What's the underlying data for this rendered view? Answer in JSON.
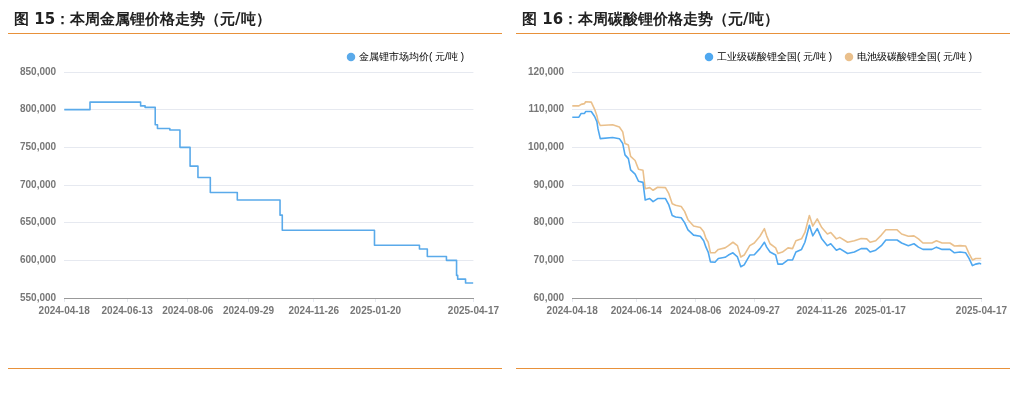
{
  "chart_data": [
    {
      "type": "step",
      "title": "图 15：本周金属锂价格走势（元/吨）",
      "x": [
        "2024-04-18",
        "2024-05-11",
        "2024-06-25",
        "2024-06-29",
        "2024-07-08",
        "2024-07-10",
        "2024-07-21",
        "2024-07-30",
        "2024-08-08",
        "2024-08-15",
        "2024-08-26",
        "2024-09-19",
        "2024-10-27",
        "2024-10-29",
        "2025-01-19",
        "2025-02-28",
        "2025-03-07",
        "2025-03-24",
        "2025-04-02",
        "2025-04-03",
        "2025-04-10",
        "2025-04-17"
      ],
      "series": [
        {
          "name": "金属锂市场均价( 元/吨 )",
          "color": "#5aaaea",
          "values": [
            800000,
            810000,
            805000,
            803000,
            780000,
            775000,
            773000,
            750000,
            725000,
            710000,
            690000,
            680000,
            660000,
            640000,
            620000,
            615000,
            605000,
            600000,
            580000,
            575000,
            570000,
            570000
          ]
        }
      ],
      "xlim": [
        "2024-04-18",
        "2025-04-17"
      ],
      "xticks": [
        "2024-04-18",
        "2024-06-13",
        "2024-08-06",
        "2024-09-29",
        "2024-11-26",
        "2025-01-20",
        "2025-04-17"
      ],
      "ylim": [
        550000,
        850000
      ],
      "yticks": [
        {
          "value": 550000,
          "label": "550,000"
        },
        {
          "value": 600000,
          "label": "600,000"
        },
        {
          "value": 650000,
          "label": "650,000"
        },
        {
          "value": 700000,
          "label": "700,000"
        },
        {
          "value": 750000,
          "label": "750,000"
        },
        {
          "value": 800000,
          "label": "800,000"
        },
        {
          "value": 850000,
          "label": "850,000"
        }
      ],
      "grid": "y",
      "legend": "top"
    },
    {
      "type": "line",
      "title": "图 16：本周碳酸锂价格走势（元/吨）",
      "x": [
        "2024-04-18",
        "2024-04-24",
        "2024-04-26",
        "2024-04-29",
        "2024-04-30",
        "2024-05-05",
        "2024-05-08",
        "2024-05-10",
        "2024-05-11",
        "2024-05-13",
        "2024-05-24",
        "2024-05-30",
        "2024-06-02",
        "2024-06-04",
        "2024-06-07",
        "2024-06-09",
        "2024-06-13",
        "2024-06-16",
        "2024-06-20",
        "2024-06-22",
        "2024-06-26",
        "2024-06-29",
        "2024-07-03",
        "2024-07-10",
        "2024-07-13",
        "2024-07-16",
        "2024-07-19",
        "2024-07-24",
        "2024-07-27",
        "2024-07-30",
        "2024-08-04",
        "2024-08-10",
        "2024-08-13",
        "2024-08-15",
        "2024-08-17",
        "2024-08-19",
        "2024-08-23",
        "2024-08-26",
        "2024-09-01",
        "2024-09-04",
        "2024-09-08",
        "2024-09-12",
        "2024-09-15",
        "2024-09-18",
        "2024-09-23",
        "2024-09-27",
        "2024-10-02",
        "2024-10-06",
        "2024-10-08",
        "2024-10-11",
        "2024-10-16",
        "2024-10-18",
        "2024-10-22",
        "2024-10-27",
        "2024-10-31",
        "2024-11-03",
        "2024-11-08",
        "2024-11-11",
        "2024-11-15",
        "2024-11-18",
        "2024-11-22",
        "2024-11-26",
        "2024-12-01",
        "2024-12-04",
        "2024-12-09",
        "2024-12-12",
        "2024-12-19",
        "2024-12-25",
        "2024-12-31",
        "2025-01-05",
        "2025-01-08",
        "2025-01-13",
        "2025-01-18",
        "2025-01-22",
        "2025-02-01",
        "2025-02-05",
        "2025-02-11",
        "2025-02-16",
        "2025-02-20",
        "2025-02-24",
        "2025-03-04",
        "2025-03-08",
        "2025-03-13",
        "2025-03-20",
        "2025-03-24",
        "2025-03-29",
        "2025-04-03",
        "2025-04-06",
        "2025-04-09",
        "2025-04-12",
        "2025-04-15",
        "2025-04-17"
      ],
      "series": [
        {
          "name": "工业级碳酸锂全国( 元/吨 )",
          "color": "#4fa8f0",
          "values": [
            108000,
            108000,
            109000,
            109000,
            109500,
            109500,
            108200,
            106800,
            104900,
            102300,
            102600,
            102300,
            101000,
            98000,
            97000,
            94000,
            92900,
            91000,
            90700,
            86000,
            86400,
            85600,
            86400,
            86400,
            84700,
            81900,
            81500,
            81300,
            80000,
            78100,
            76700,
            76400,
            75200,
            73500,
            72200,
            69600,
            69500,
            70500,
            70800,
            71400,
            72000,
            70900,
            68300,
            68800,
            71400,
            71500,
            73100,
            74800,
            73500,
            72200,
            71400,
            69000,
            69000,
            70100,
            70100,
            72200,
            72900,
            74800,
            79300,
            76500,
            78400,
            75700,
            73900,
            74400,
            72700,
            73100,
            71800,
            72200,
            73100,
            73100,
            72200,
            72700,
            73900,
            75400,
            75400,
            74600,
            73900,
            74400,
            73500,
            72900,
            72900,
            73500,
            72900,
            72900,
            72000,
            72200,
            72000,
            70500,
            68600,
            69000,
            69200,
            69000
          ]
        },
        {
          "name": "电池级碳酸锂全国( 元/吨 )",
          "color": "#eac08c",
          "values": [
            111000,
            111000,
            111400,
            111600,
            112100,
            112000,
            110100,
            108400,
            107000,
            105800,
            106000,
            105400,
            104100,
            101000,
            100600,
            97600,
            96500,
            94200,
            93900,
            89000,
            89300,
            88600,
            89400,
            89300,
            87700,
            85000,
            84600,
            84300,
            83000,
            80800,
            79100,
            78700,
            77600,
            75800,
            74800,
            72000,
            72000,
            72900,
            73300,
            73900,
            74800,
            73900,
            70900,
            71400,
            73900,
            74600,
            76400,
            78400,
            76500,
            74400,
            73300,
            71800,
            72200,
            73300,
            73100,
            75200,
            75700,
            77400,
            81900,
            79100,
            81000,
            78700,
            77000,
            77400,
            75700,
            76100,
            74800,
            75200,
            75800,
            75700,
            74800,
            75200,
            76700,
            78100,
            78100,
            77000,
            76400,
            76500,
            75700,
            74600,
            74600,
            75200,
            74600,
            74600,
            73800,
            73900,
            73800,
            71800,
            70100,
            70500,
            70500,
            70500
          ]
        }
      ],
      "xlim": [
        "2024-04-18",
        "2025-04-17"
      ],
      "xticks": [
        "2024-04-18",
        "2024-06-14",
        "2024-08-06",
        "2024-09-27",
        "2024-11-26",
        "2025-01-17",
        "2025-04-17"
      ],
      "ylim": [
        60000,
        120000
      ],
      "yticks": [
        {
          "value": 60000,
          "label": "60,000"
        },
        {
          "value": 70000,
          "label": "70,000"
        },
        {
          "value": 80000,
          "label": "80,000"
        },
        {
          "value": 90000,
          "label": "90,000"
        },
        {
          "value": 100000,
          "label": "100,000"
        },
        {
          "value": 110000,
          "label": "110,000"
        },
        {
          "value": 120000,
          "label": "120,000"
        }
      ],
      "grid": "y",
      "legend": "top"
    }
  ]
}
